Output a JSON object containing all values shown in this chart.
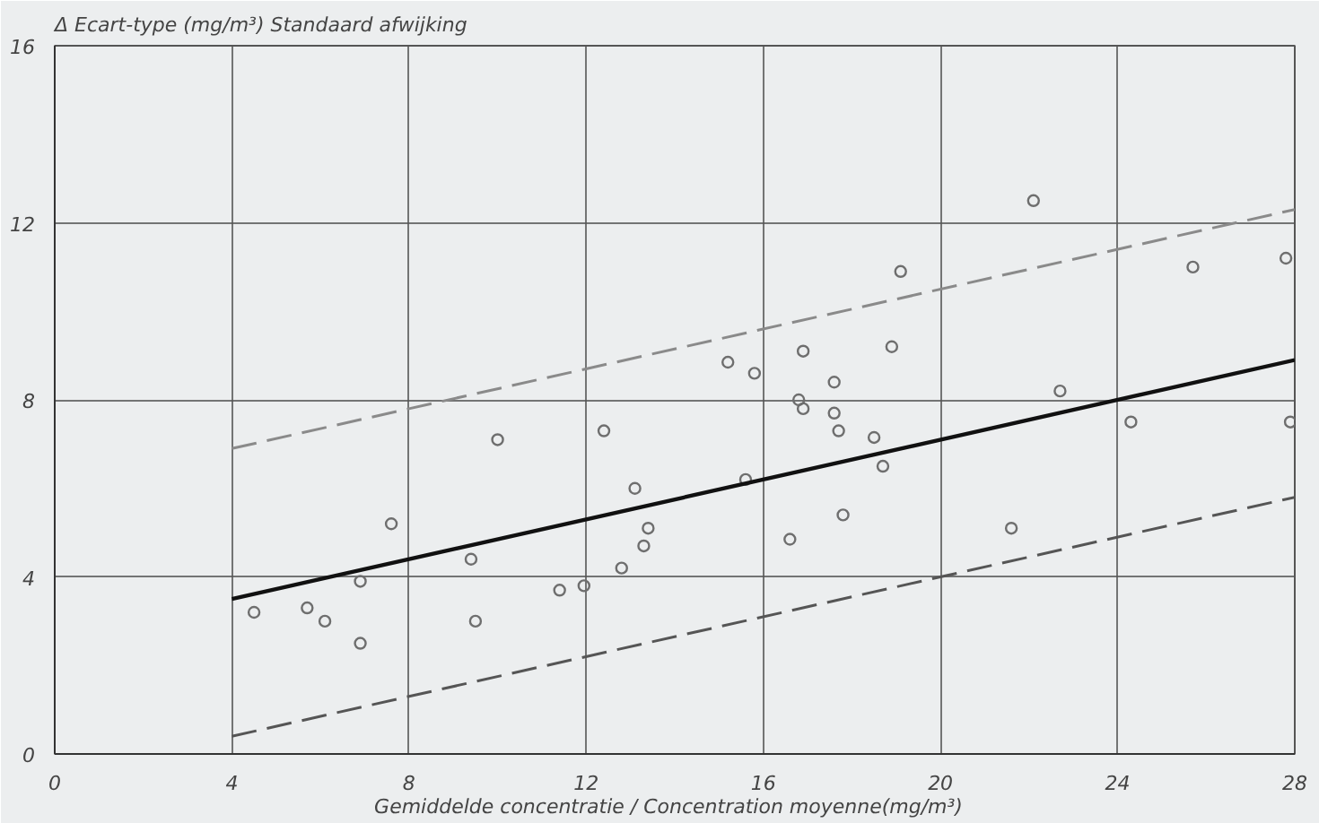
{
  "chart_data": {
    "type": "scatter",
    "ylabel": "Δ Ecart-type (mg/m³) Standaard afwijking",
    "xlabel": "Gemiddelde concentratie  /  Concentration moyenne(mg/m³)",
    "xlim": [
      0,
      28
    ],
    "xticks": [
      0,
      4,
      8,
      12,
      16,
      20,
      24,
      28
    ],
    "ylim": [
      0,
      16
    ],
    "yticks": [
      0,
      4,
      8,
      12,
      16
    ],
    "grid": true,
    "series": [
      {
        "color": "#6e6e6e",
        "marker": "circle",
        "x": [
          4.5,
          5.7,
          6.1,
          6.9,
          6.9,
          7.6,
          9.4,
          9.5,
          10.0,
          11.4,
          11.95,
          12.4,
          12.8,
          13.1,
          13.3,
          13.4,
          15.2,
          15.8,
          15.6,
          16.6,
          16.8,
          16.9,
          16.9,
          17.6,
          17.6,
          17.7,
          17.8,
          18.5,
          18.7,
          18.9,
          19.1,
          21.6,
          22.1,
          22.7,
          24.3,
          25.7,
          27.8,
          27.9
        ],
        "values": [
          3.2,
          3.3,
          3.0,
          2.5,
          3.9,
          5.2,
          4.4,
          3.0,
          7.1,
          3.7,
          3.8,
          7.3,
          4.2,
          6.0,
          4.7,
          5.1,
          8.85,
          8.6,
          6.2,
          4.85,
          8.0,
          7.8,
          9.1,
          8.4,
          7.7,
          7.3,
          5.4,
          7.15,
          6.5,
          9.2,
          10.9,
          5.1,
          12.5,
          8.2,
          7.5,
          11.0,
          11.2,
          7.5
        ]
      },
      {
        "type": "line",
        "color": "#111111",
        "line_style": "solid",
        "marker": "none",
        "x": [
          4,
          28
        ],
        "values": [
          3.5,
          8.9
        ]
      },
      {
        "type": "line",
        "color": "#8a8a8a",
        "line_style": "dashed",
        "marker": "none",
        "x": [
          4,
          28
        ],
        "values": [
          6.9,
          12.3
        ]
      },
      {
        "type": "line",
        "color": "#555555",
        "line_style": "dashed",
        "marker": "none",
        "x": [
          4,
          28
        ],
        "values": [
          0.4,
          5.8
        ]
      }
    ]
  }
}
